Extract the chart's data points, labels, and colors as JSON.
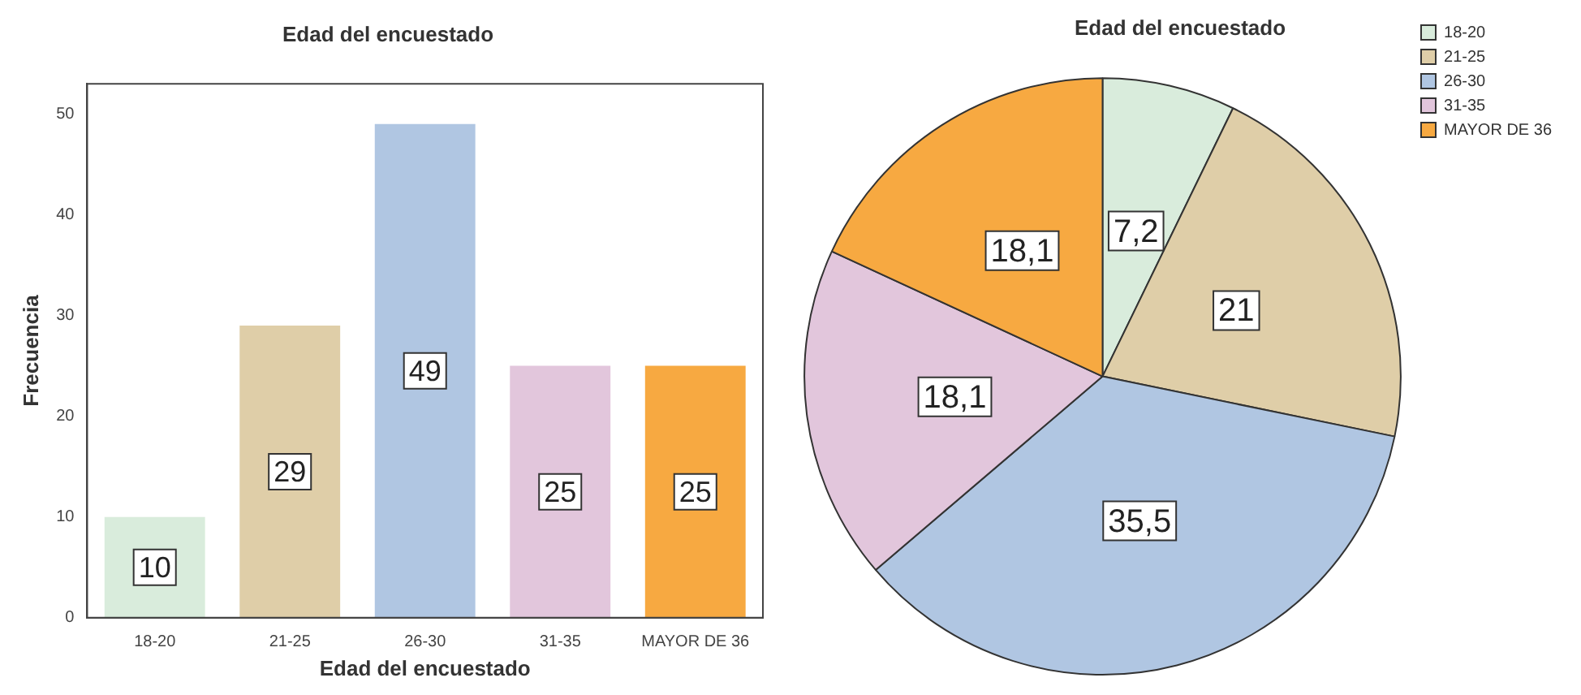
{
  "chart_data": [
    {
      "type": "bar",
      "title": "Edad del encuestado",
      "xlabel": "Edad del encuestado",
      "ylabel": "Frecuencia",
      "categories": [
        "18-20",
        "21-25",
        "26-30",
        "31-35",
        "MAYOR DE 36"
      ],
      "values": [
        10,
        29,
        49,
        25,
        25
      ],
      "colors": [
        "#d9ecdc",
        "#dfcea8",
        "#b0c6e2",
        "#e2c6dc",
        "#f7a941"
      ],
      "ylim": [
        0,
        53
      ],
      "yticks": [
        0,
        10,
        20,
        30,
        40,
        50
      ],
      "data_labels": true
    },
    {
      "type": "pie",
      "title": "Edad del encuestado",
      "categories": [
        "18-20",
        "21-25",
        "26-30",
        "31-35",
        "MAYOR DE 36"
      ],
      "values": [
        7.2,
        21,
        35.5,
        18.1,
        18.1
      ],
      "value_labels": [
        "7,2",
        "21",
        "35,5",
        "18,1",
        "18,1"
      ],
      "colors": [
        "#d9ecdc",
        "#dfcea8",
        "#b0c6e2",
        "#e2c6dc",
        "#f7a941"
      ],
      "legend": "top right"
    }
  ]
}
